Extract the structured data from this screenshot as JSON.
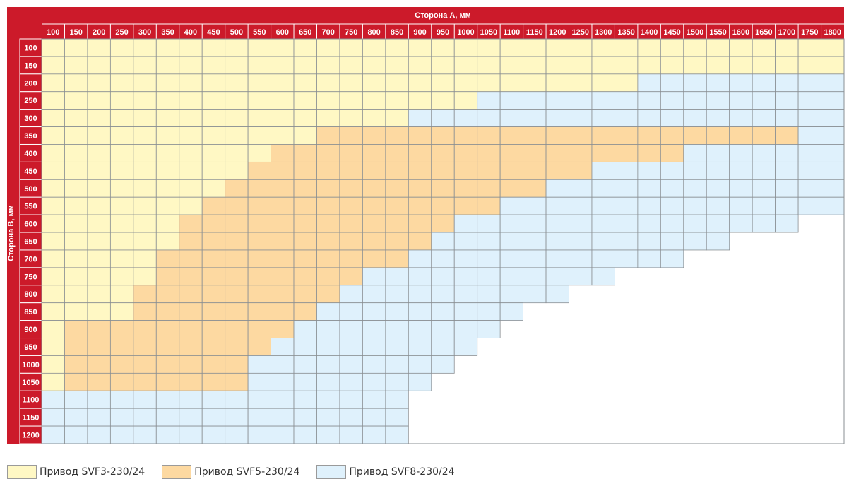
{
  "header": {
    "title_a": "Сторона А, мм",
    "title_b": "Сторона В, мм"
  },
  "columns": [
    "100",
    "150",
    "200",
    "250",
    "300",
    "350",
    "400",
    "450",
    "500",
    "550",
    "600",
    "650",
    "700",
    "750",
    "800",
    "850",
    "900",
    "950",
    "1000",
    "1050",
    "1100",
    "1150",
    "1200",
    "1250",
    "1300",
    "1350",
    "1400",
    "1450",
    "1500",
    "1550",
    "1600",
    "1650",
    "1700",
    "1750",
    "1800"
  ],
  "rows": [
    "100",
    "150",
    "200",
    "250",
    "300",
    "350",
    "400",
    "450",
    "500",
    "550",
    "600",
    "650",
    "700",
    "750",
    "800",
    "850",
    "900",
    "950",
    "1000",
    "1050",
    "1100",
    "1150",
    "1200"
  ],
  "bands": [
    [
      35,
      0,
      35
    ],
    [
      35,
      0,
      35
    ],
    [
      26,
      0,
      35
    ],
    [
      19,
      0,
      35
    ],
    [
      16,
      0,
      35
    ],
    [
      12,
      33,
      35
    ],
    [
      10,
      28,
      35
    ],
    [
      9,
      24,
      35
    ],
    [
      8,
      22,
      35
    ],
    [
      7,
      20,
      35
    ],
    [
      6,
      18,
      33
    ],
    [
      6,
      17,
      30
    ],
    [
      5,
      16,
      28
    ],
    [
      5,
      14,
      25
    ],
    [
      4,
      13,
      23
    ],
    [
      4,
      12,
      21
    ],
    [
      1,
      11,
      20
    ],
    [
      1,
      10,
      19
    ],
    [
      1,
      9,
      18
    ],
    [
      1,
      9,
      17
    ],
    [
      0,
      0,
      16
    ],
    [
      0,
      0,
      16
    ],
    [
      0,
      0,
      16
    ]
  ],
  "colors": {
    "header": "#cc1a2a",
    "svf3": "#fff8c4",
    "svf5": "#fdd9a1",
    "svf8": "#dff1fc",
    "border": "#8a8f93"
  },
  "legend": [
    {
      "label": "Привод SVF3-230/24",
      "color": "#fff8c4"
    },
    {
      "label": "Привод SVF5-230/24",
      "color": "#fdd9a1"
    },
    {
      "label": "Привод SVF8-230/24",
      "color": "#dff1fc"
    }
  ]
}
